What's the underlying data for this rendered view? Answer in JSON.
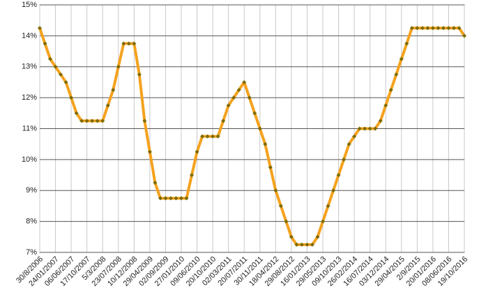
{
  "chart_data": {
    "type": "line",
    "categories": [
      "30/8/2006",
      null,
      null,
      "24/01/2007",
      null,
      null,
      "06/06/2007",
      null,
      null,
      "17/10/2007",
      null,
      null,
      "5/3/2008",
      null,
      null,
      "23/07/2008",
      null,
      null,
      "10/12/2008",
      null,
      null,
      "29/04/2009",
      null,
      null,
      "02/09/2009",
      null,
      null,
      "27/01/2010",
      null,
      null,
      "09/06/2010",
      null,
      null,
      "20/10/2010",
      null,
      null,
      "02/03/2011",
      null,
      null,
      "20/07/2011",
      null,
      null,
      "30/11/2011",
      null,
      null,
      "18/04/2012",
      null,
      null,
      "29/08/2012",
      null,
      null,
      "16/01/2013",
      null,
      null,
      "29/05/2013",
      null,
      null,
      "09/10/2013",
      null,
      null,
      "26/02/2014",
      null,
      null,
      "16/07/2014",
      null,
      null,
      "03/12/2014",
      null,
      null,
      "29/04/2015",
      null,
      null,
      "2/9/2015",
      null,
      null,
      "20/01/2016",
      null,
      null,
      "08/06/2016",
      null,
      null,
      "19/10/2016"
    ],
    "series": [
      {
        "color": "#f5a21e",
        "marker_color": "#7d6b00",
        "values": [
          14.25,
          13.75,
          13.25,
          13.0,
          12.75,
          12.5,
          12.0,
          11.5,
          11.25,
          11.25,
          11.25,
          11.25,
          11.25,
          11.75,
          12.25,
          13.0,
          13.75,
          13.75,
          13.75,
          12.75,
          11.25,
          10.25,
          9.25,
          8.75,
          8.75,
          8.75,
          8.75,
          8.75,
          8.75,
          9.5,
          10.25,
          10.75,
          10.75,
          10.75,
          10.75,
          11.25,
          11.75,
          12.0,
          12.25,
          12.5,
          12.0,
          11.5,
          11.0,
          10.5,
          9.75,
          9.0,
          8.5,
          8.0,
          7.5,
          7.25,
          7.25,
          7.25,
          7.25,
          7.5,
          8.0,
          8.5,
          9.0,
          9.5,
          10.0,
          10.5,
          10.75,
          11.0,
          11.0,
          11.0,
          11.0,
          11.25,
          11.75,
          12.25,
          12.75,
          13.25,
          13.75,
          14.25,
          14.25,
          14.25,
          14.25,
          14.25,
          14.25,
          14.25,
          14.25,
          14.25,
          14.25,
          14.0
        ]
      }
    ],
    "ylim": [
      7,
      15
    ],
    "yticks": [
      {
        "value": 7,
        "label": "7%"
      },
      {
        "value": 8,
        "label": "8%"
      },
      {
        "value": 9,
        "label": "9%"
      },
      {
        "value": 10,
        "label": "10%"
      },
      {
        "value": 11,
        "label": "11%"
      },
      {
        "value": 12,
        "label": "12%"
      },
      {
        "value": 13,
        "label": "13%"
      },
      {
        "value": 14,
        "label": "14%"
      },
      {
        "value": 15,
        "label": "15%"
      }
    ],
    "grid": true
  }
}
